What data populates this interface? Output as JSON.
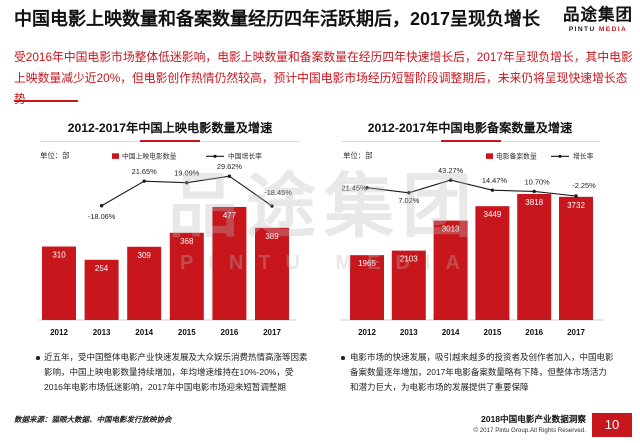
{
  "header": {
    "title": "中国电影上映数量和备案数量经历四年活跃期后，2017呈现负增长",
    "summary": "受2016年中国电影市场整体低迷影响，电影上映数量和备案数量在经历四年快速增长后，2017年呈现负增长，其中电影上映数量减少近20%，但电影创作热情仍然较高，预计中国电影市场经历短暂阶段调整期后，未来仍将呈现快速增长态势"
  },
  "logo": {
    "main": "品途集团",
    "sub_a": "PINTU",
    "sub_b": "MEDIA"
  },
  "watermark": {
    "main": "品途集团",
    "sub": "PINTU MEDIA"
  },
  "colors": {
    "accent": "#c8161d",
    "bar": "#c8161d",
    "line": "#1a1a1a",
    "text": "#111111"
  },
  "chart_data": [
    {
      "type": "bar",
      "title": "2012-2017年中国上映电影数量及增速",
      "unit": "单位：部",
      "legend": "top-right",
      "grid": false,
      "categories": [
        "2012",
        "2013",
        "2014",
        "2015",
        "2016",
        "2017"
      ],
      "series": [
        {
          "name": "中国上映电影数量",
          "type": "bar",
          "values": [
            310,
            254,
            309,
            368,
            477,
            389
          ]
        },
        {
          "name": "中国增长率",
          "type": "line",
          "unit": "%",
          "values": [
            null,
            -18.06,
            21.65,
            19.09,
            29.62,
            -18.45
          ]
        }
      ]
    },
    {
      "type": "bar",
      "title": "2012-2017年中国电影备案数量及增速",
      "unit": "单位：部",
      "legend": "top-right",
      "grid": false,
      "categories": [
        "2012",
        "2013",
        "2014",
        "2015",
        "2016",
        "2017"
      ],
      "series": [
        {
          "name": "电影备案数量",
          "type": "bar",
          "values": [
            1965,
            2103,
            3013,
            3449,
            3818,
            3732
          ]
        },
        {
          "name": "增长率",
          "type": "line",
          "unit": "%",
          "values": [
            21.45,
            7.02,
            43.27,
            14.47,
            10.7,
            -2.25
          ]
        }
      ]
    }
  ],
  "bullets": [
    "近五年，受中国整体电影产业快速发展及大众娱乐消费热情高涨等因素影响，中国上映电影数量持续增加，年均增速维持在10%-20%，受2016年电影市场低迷影响，2017年中国电影市场迎来短暂调整期",
    "电影市场的快速发展，吸引越来越多的投资者及创作者加入，中国电影备案数量逐年增加，2017年电影备案数量略有下降，但整体市场活力和潜力巨大，为电影市场的发展提供了重要保障"
  ],
  "footer": {
    "source": "数据来源：猫眼大数据、中国电影发行放映协会",
    "report": "2018中国电影产业数据洞察",
    "copyright": "© 2017 Pintu Group.All Rights Reserved.",
    "page": "10"
  }
}
